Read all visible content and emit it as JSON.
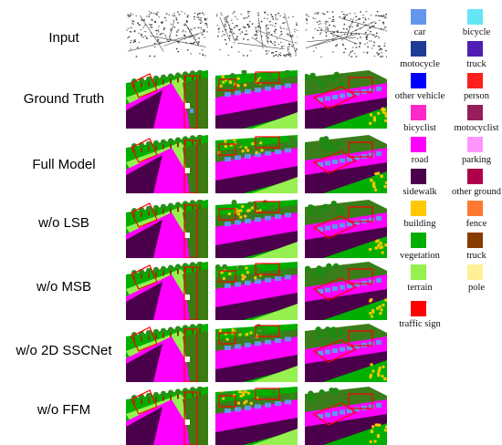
{
  "rows": [
    {
      "label": "Input"
    },
    {
      "label": "Ground Truth"
    },
    {
      "label": "Full Model"
    },
    {
      "label": "w/o LSB"
    },
    {
      "label": "w/o MSB"
    },
    {
      "label": "w/o 2D SSCNet"
    },
    {
      "label": "w/o FFM"
    }
  ],
  "legend": [
    {
      "label": "car",
      "color": "#6495ed"
    },
    {
      "label": "bicycle",
      "color": "#64e6f5"
    },
    {
      "label": "motocycle",
      "color": "#1e3c96"
    },
    {
      "label": "truck",
      "color": "#501eb4"
    },
    {
      "label": "other vehicle",
      "color": "#0000ff"
    },
    {
      "label": "person",
      "color": "#ff1e1e"
    },
    {
      "label": "bicyclist",
      "color": "#ff28c8"
    },
    {
      "label": "motocyclist",
      "color": "#961e5a"
    },
    {
      "label": "road",
      "color": "#ff00ff"
    },
    {
      "label": "parking",
      "color": "#ff96ff"
    },
    {
      "label": "sidewalk",
      "color": "#4b004b"
    },
    {
      "label": "other ground",
      "color": "#af004b"
    },
    {
      "label": "building",
      "color": "#ffc800"
    },
    {
      "label": "fence",
      "color": "#ff7832"
    },
    {
      "label": "vegetation",
      "color": "#00af00"
    },
    {
      "label": "truck",
      "color": "#873c00"
    },
    {
      "label": "terrain",
      "color": "#96f050"
    },
    {
      "label": "pole",
      "color": "#fff096"
    },
    {
      "label": "traffic sign",
      "color": "#ff0000"
    }
  ]
}
